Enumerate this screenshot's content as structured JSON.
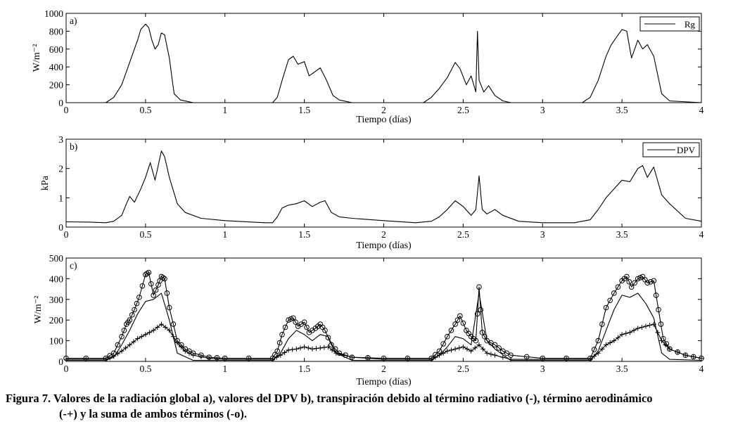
{
  "chart_data": [
    {
      "type": "line",
      "panel_label": "a)",
      "xlabel": "Tiempo (días)",
      "ylabel": "W/m⁻²",
      "xlim": [
        0,
        4
      ],
      "ylim": [
        0,
        1000
      ],
      "xticks": [
        "0",
        "0.5",
        "1",
        "1.5",
        "2",
        "2.5",
        "3",
        "3.5",
        "4"
      ],
      "yticks": [
        "0",
        "200",
        "400",
        "600",
        "800",
        "1000"
      ],
      "legend": "top-right",
      "grid": false,
      "series": [
        {
          "name": "Rg",
          "x": [
            0,
            0.25,
            0.3,
            0.35,
            0.38,
            0.4,
            0.42,
            0.45,
            0.47,
            0.5,
            0.52,
            0.54,
            0.56,
            0.58,
            0.6,
            0.62,
            0.65,
            0.68,
            0.72,
            0.8,
            1.3,
            1.33,
            1.36,
            1.4,
            1.43,
            1.46,
            1.5,
            1.53,
            1.57,
            1.6,
            1.64,
            1.68,
            1.72,
            1.8,
            2.25,
            2.3,
            2.35,
            2.4,
            2.45,
            2.48,
            2.52,
            2.55,
            2.58,
            2.59,
            2.6,
            2.63,
            2.66,
            2.7,
            2.75,
            2.8,
            3.25,
            3.3,
            3.35,
            3.4,
            3.43,
            3.46,
            3.5,
            3.53,
            3.56,
            3.6,
            3.63,
            3.66,
            3.7,
            3.75,
            3.8,
            4.0
          ],
          "values": [
            0,
            0,
            60,
            200,
            350,
            450,
            550,
            700,
            820,
            880,
            840,
            700,
            600,
            650,
            780,
            760,
            500,
            100,
            30,
            0,
            0,
            60,
            250,
            480,
            520,
            430,
            460,
            300,
            350,
            390,
            250,
            80,
            30,
            0,
            0,
            60,
            160,
            280,
            450,
            380,
            200,
            300,
            120,
            800,
            250,
            120,
            190,
            80,
            20,
            0,
            0,
            60,
            250,
            520,
            640,
            720,
            820,
            800,
            500,
            700,
            600,
            650,
            520,
            100,
            20,
            0
          ]
        }
      ]
    },
    {
      "type": "line",
      "panel_label": "b)",
      "xlabel": "Tiempo (días)",
      "ylabel": "kPa",
      "xlim": [
        0,
        4
      ],
      "ylim": [
        0,
        3
      ],
      "xticks": [
        "0",
        "0.5",
        "1",
        "1.5",
        "2",
        "2.5",
        "3",
        "3.5",
        "4"
      ],
      "yticks": [
        "0",
        "1",
        "2",
        "3"
      ],
      "legend": "top-right",
      "grid": false,
      "series": [
        {
          "name": "DPV",
          "x": [
            0,
            0.15,
            0.25,
            0.3,
            0.35,
            0.38,
            0.4,
            0.43,
            0.47,
            0.5,
            0.53,
            0.56,
            0.58,
            0.6,
            0.62,
            0.65,
            0.7,
            0.75,
            0.85,
            1.0,
            1.25,
            1.3,
            1.33,
            1.36,
            1.4,
            1.45,
            1.5,
            1.55,
            1.6,
            1.63,
            1.67,
            1.72,
            1.8,
            2.0,
            2.2,
            2.3,
            2.35,
            2.4,
            2.45,
            2.5,
            2.55,
            2.58,
            2.6,
            2.62,
            2.65,
            2.7,
            2.75,
            2.85,
            3.0,
            3.2,
            3.3,
            3.35,
            3.4,
            3.45,
            3.5,
            3.55,
            3.6,
            3.63,
            3.66,
            3.7,
            3.75,
            3.8,
            3.9,
            4.0
          ],
          "values": [
            0.18,
            0.17,
            0.15,
            0.2,
            0.4,
            0.8,
            1.05,
            0.85,
            1.3,
            1.7,
            2.2,
            1.6,
            2.1,
            2.6,
            2.4,
            1.7,
            0.8,
            0.5,
            0.3,
            0.22,
            0.15,
            0.15,
            0.35,
            0.65,
            0.75,
            0.8,
            0.9,
            0.7,
            0.85,
            0.9,
            0.5,
            0.35,
            0.3,
            0.22,
            0.15,
            0.2,
            0.35,
            0.6,
            0.9,
            0.7,
            0.4,
            0.6,
            1.75,
            0.6,
            0.45,
            0.6,
            0.4,
            0.2,
            0.15,
            0.15,
            0.25,
            0.6,
            1.0,
            1.3,
            1.6,
            1.55,
            2.0,
            2.1,
            1.7,
            2.05,
            1.1,
            0.8,
            0.3,
            0.2
          ]
        }
      ]
    },
    {
      "type": "line",
      "panel_label": "c)",
      "xlabel": "Tiempo (días)",
      "ylabel": "W/m⁻²",
      "xlim": [
        0,
        4
      ],
      "ylim": [
        0,
        500
      ],
      "xticks": [
        "0",
        "0.5",
        "1",
        "1.5",
        "2",
        "2.5",
        "3",
        "3.5",
        "4"
      ],
      "yticks": [
        "0",
        "100",
        "200",
        "300",
        "400",
        "500"
      ],
      "legend": "none",
      "grid": false,
      "series": [
        {
          "name": "",
          "marker": "none",
          "x": [
            0,
            0.25,
            0.3,
            0.35,
            0.4,
            0.45,
            0.5,
            0.55,
            0.6,
            0.65,
            0.7,
            0.8,
            1.3,
            1.35,
            1.4,
            1.45,
            1.5,
            1.55,
            1.6,
            1.65,
            1.7,
            1.8,
            2.3,
            2.35,
            2.4,
            2.45,
            2.5,
            2.55,
            2.6,
            2.65,
            2.7,
            2.8,
            3.3,
            3.35,
            3.4,
            3.45,
            3.5,
            3.55,
            3.6,
            3.65,
            3.7,
            3.75,
            3.8,
            4.0
          ],
          "values": [
            5,
            5,
            20,
            80,
            150,
            230,
            290,
            300,
            330,
            200,
            40,
            5,
            5,
            40,
            110,
            150,
            130,
            100,
            130,
            120,
            40,
            5,
            5,
            30,
            70,
            120,
            110,
            80,
            330,
            100,
            60,
            5,
            5,
            50,
            150,
            250,
            320,
            310,
            330,
            280,
            210,
            40,
            10,
            5
          ]
        },
        {
          "name": "",
          "marker": "plus",
          "x": [
            0,
            0.25,
            0.3,
            0.35,
            0.4,
            0.45,
            0.5,
            0.55,
            0.6,
            0.65,
            0.7,
            0.75,
            0.8,
            0.9,
            1.0,
            1.3,
            1.35,
            1.4,
            1.45,
            1.5,
            1.55,
            1.6,
            1.65,
            1.7,
            1.8,
            2.0,
            2.3,
            2.35,
            2.4,
            2.45,
            2.5,
            2.55,
            2.6,
            2.65,
            2.7,
            2.8,
            3.0,
            3.3,
            3.35,
            3.4,
            3.45,
            3.5,
            3.55,
            3.6,
            3.65,
            3.7,
            3.75,
            3.8,
            3.9,
            4.0
          ],
          "values": [
            10,
            10,
            25,
            50,
            80,
            110,
            130,
            150,
            180,
            150,
            90,
            50,
            30,
            15,
            10,
            10,
            30,
            55,
            60,
            70,
            60,
            65,
            70,
            40,
            20,
            10,
            10,
            30,
            50,
            60,
            70,
            50,
            80,
            40,
            30,
            10,
            10,
            10,
            40,
            80,
            100,
            130,
            140,
            160,
            170,
            180,
            100,
            60,
            30,
            15
          ]
        },
        {
          "name": "",
          "marker": "circle",
          "x": [
            0,
            0.25,
            0.3,
            0.35,
            0.38,
            0.4,
            0.43,
            0.46,
            0.5,
            0.52,
            0.55,
            0.58,
            0.6,
            0.62,
            0.65,
            0.7,
            0.75,
            0.8,
            0.9,
            1.0,
            1.3,
            1.33,
            1.36,
            1.4,
            1.43,
            1.46,
            1.5,
            1.53,
            1.57,
            1.6,
            1.63,
            1.67,
            1.72,
            1.8,
            2.0,
            2.3,
            2.35,
            2.4,
            2.45,
            2.48,
            2.52,
            2.55,
            2.58,
            2.6,
            2.62,
            2.65,
            2.7,
            2.75,
            2.8,
            3.0,
            3.3,
            3.35,
            3.4,
            3.45,
            3.5,
            3.53,
            3.56,
            3.6,
            3.63,
            3.66,
            3.7,
            3.73,
            3.76,
            3.8,
            3.9,
            4.0
          ],
          "values": [
            15,
            15,
            40,
            120,
            180,
            200,
            250,
            310,
            420,
            430,
            320,
            370,
            410,
            400,
            260,
            100,
            60,
            40,
            20,
            15,
            15,
            50,
            130,
            200,
            210,
            170,
            190,
            140,
            160,
            180,
            150,
            80,
            40,
            20,
            15,
            15,
            50,
            120,
            180,
            220,
            150,
            120,
            100,
            360,
            140,
            100,
            80,
            50,
            30,
            15,
            15,
            100,
            260,
            330,
            390,
            410,
            360,
            400,
            410,
            380,
            390,
            250,
            110,
            60,
            30,
            15
          ]
        }
      ]
    }
  ],
  "caption": {
    "line1": "Figura 7. Valores de la radiación global a), valores del DPV b), transpiración debido al término radiativo (-), término aerodinámico",
    "line2": "(-+) y la suma de ambos términos (-o)."
  }
}
